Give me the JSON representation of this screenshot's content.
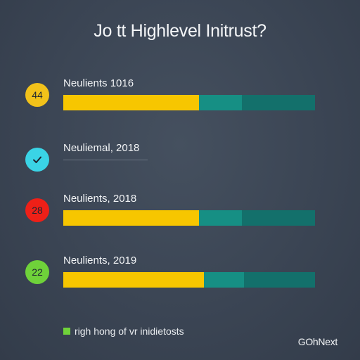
{
  "chart_data": {
    "type": "bar",
    "title": "Jo tt Highlevel Initrust?",
    "rows": [
      {
        "badge": "44",
        "badge_icon": "",
        "badge_color": "#f2c21a",
        "label": "Neulients 1016",
        "segments": [
          {
            "value": 0.54,
            "color": "#f7c600"
          },
          {
            "value": 0.17,
            "color": "#168f84"
          },
          {
            "value": 0.29,
            "color": "#13706b"
          }
        ]
      },
      {
        "badge": "",
        "badge_icon": "check-icon",
        "badge_color": "#3ad4e6",
        "label": "Neuliemal, 2018",
        "segments": []
      },
      {
        "badge": "28",
        "badge_icon": "",
        "badge_color": "#ee2018",
        "label": "Neulients, 2018",
        "segments": [
          {
            "value": 0.54,
            "color": "#f7c600"
          },
          {
            "value": 0.17,
            "color": "#168f84"
          },
          {
            "value": 0.29,
            "color": "#13706b"
          }
        ]
      },
      {
        "badge": "22",
        "badge_icon": "",
        "badge_color": "#6fd23a",
        "label": "Neulients, 2019",
        "segments": [
          {
            "value": 0.56,
            "color": "#f7c600"
          },
          {
            "value": 0.16,
            "color": "#168f84"
          },
          {
            "value": 0.28,
            "color": "#13706b"
          }
        ]
      }
    ],
    "legend": "righ hong of vr inidietosts",
    "legend_color": "#6fd23a"
  },
  "brand": "GOhNext"
}
